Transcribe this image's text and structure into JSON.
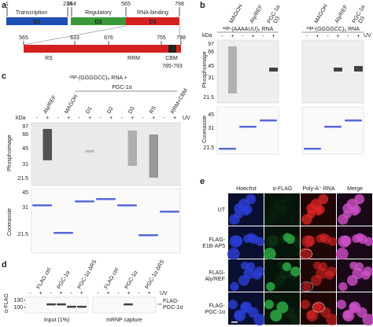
{
  "panel_a": {
    "label": "a",
    "positions": [
      "1",
      "234",
      "254",
      "565",
      "798"
    ],
    "domains": [
      "Transcription",
      "Regulatory",
      "RNA-binding"
    ],
    "domain_names": [
      "D1",
      "D2",
      "D3"
    ],
    "zoom_positions": [
      "565",
      "633",
      "676",
      "755",
      "798"
    ],
    "regions": [
      "RS",
      "RRM",
      "CBM"
    ],
    "cbm_range": "785-793"
  },
  "panel_b": {
    "label": "b",
    "kda": "kDa",
    "uv": "UV",
    "phospho": "Phosphoimage",
    "coomassie": "Coomassie",
    "blots": [
      {
        "rna": "³²P-(AAAAUU)₅ RNA",
        "lanes": [
          [
            "MAGOH"
          ],
          [
            "Aly/REF"
          ],
          [
            "PGC-1α",
            "D3"
          ]
        ],
        "signs": [
          "-",
          "+",
          "-",
          "+",
          "-",
          "+"
        ]
      },
      {
        "rna": "³²P-(GGGGCC)₅ RNA",
        "lanes": [
          [
            "MAGOH"
          ],
          [
            "Aly/REF"
          ],
          [
            "PGC-1α",
            "D3"
          ]
        ],
        "signs": [
          "-",
          "+",
          "-",
          "+",
          "-",
          "+"
        ]
      }
    ],
    "phospho_markers": [
      "97",
      "66",
      "45",
      "31",
      "21.5"
    ],
    "coomassie_markers": [
      "45",
      "31",
      "21.5"
    ]
  },
  "panel_c": {
    "label": "c",
    "rna": "³²P-(GGGGCC)₅ RNA +",
    "group": "PGC-1α",
    "kda": "kDa",
    "uv": "UV",
    "phospho": "Phosphoimage",
    "coomassie": "Coomassie",
    "lanes": [
      "Aly/REF",
      "MAGOH",
      "D1",
      "D2",
      "D3",
      "RS",
      "RRM+CBM"
    ],
    "signs": [
      "-",
      "+",
      "-",
      "+",
      "-",
      "+",
      "-",
      "+",
      "-",
      "+",
      "-",
      "+",
      "-",
      "+"
    ],
    "phospho_markers": [
      "97",
      "66",
      "45",
      "31",
      "21.5"
    ],
    "coomassie_markers": [
      "45",
      "31",
      "21.5"
    ]
  },
  "panel_d": {
    "label": "d",
    "uv": "UV",
    "antibody": "α-FLAG",
    "lanes": [
      "FLAG ctrl",
      "PGC-1α",
      "PGC-1α ΔRS"
    ],
    "signs": [
      "-",
      "+",
      "-",
      "+",
      "-",
      "+"
    ],
    "markers": [
      "130",
      "100"
    ],
    "blots": [
      "Input (1%)",
      "mRNP capture"
    ],
    "band_label": [
      "FLAG-",
      "PGC-1α"
    ]
  },
  "panel_e": {
    "label": "e",
    "columns": [
      "Hoechst",
      "α-FLAG",
      "Poly-A⁺ RNA",
      "Merge"
    ],
    "rows": [
      [
        "UT"
      ],
      [
        "FLAG-",
        "E1B-AP5"
      ],
      [
        "FLAG-",
        "Aly/REF"
      ],
      [
        "FLAG-",
        "PGC-1α"
      ]
    ]
  }
}
